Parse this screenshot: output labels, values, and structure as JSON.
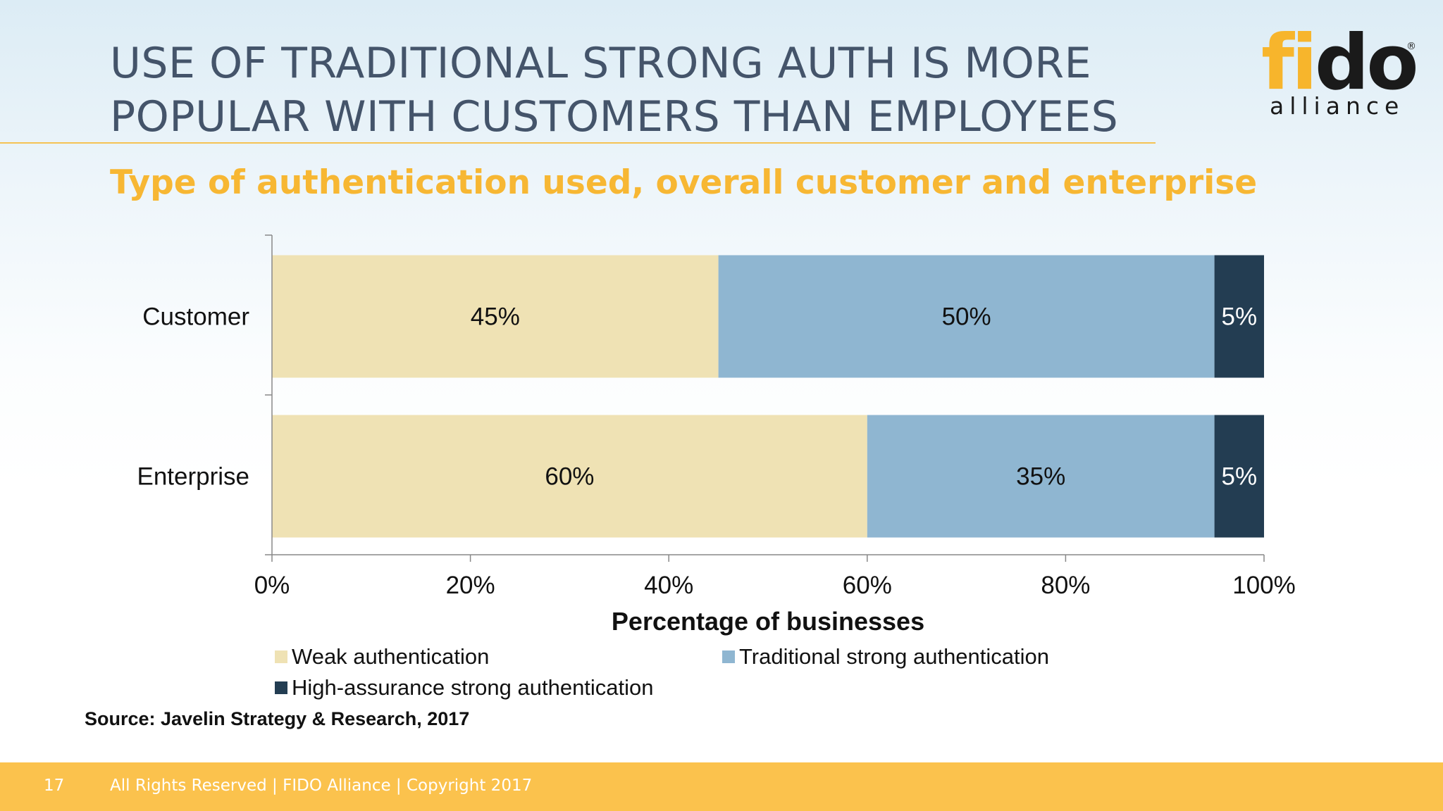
{
  "slide": {
    "title_line1": "USE OF TRADITIONAL STRONG AUTH IS MORE",
    "title_line2": "POPULAR WITH CUSTOMERS THAN EMPLOYEES",
    "subtitle": "Type of authentication used, overall customer and enterprise",
    "source": "Source: Javelin Strategy & Research, 2017",
    "page_number": "17",
    "footer_text": "All Rights Reserved | FIDO Alliance | Copyright 2017"
  },
  "logo": {
    "text_main": "fido",
    "text_sub": "alliance",
    "registered": "®",
    "orange": "#f7b52c",
    "dark": "#1a1a1a"
  },
  "chart_data": {
    "type": "bar",
    "orientation": "horizontal",
    "stacked": true,
    "categories": [
      "Customer",
      "Enterprise"
    ],
    "series": [
      {
        "name": "Weak authentication",
        "values": [
          45,
          60
        ],
        "color": "#efe2b4",
        "label_color": "#111111"
      },
      {
        "name": "Traditional strong authentication",
        "values": [
          50,
          35
        ],
        "color": "#8fb6d1",
        "label_color": "#111111"
      },
      {
        "name": "High-assurance strong authentication",
        "values": [
          5,
          5
        ],
        "color": "#233d52",
        "label_color": "#ffffff"
      }
    ],
    "data_labels": [
      [
        "45%",
        "60%"
      ],
      [
        "50%",
        "35%"
      ],
      [
        "5%",
        "5%"
      ]
    ],
    "xlim": [
      0,
      100
    ],
    "xticks": [
      0,
      20,
      40,
      60,
      80,
      100
    ],
    "xtick_labels": [
      "0%",
      "20%",
      "40%",
      "60%",
      "80%",
      "100%"
    ],
    "xlabel": "Percentage of businesses",
    "grid": false,
    "legend_position": "bottom"
  }
}
